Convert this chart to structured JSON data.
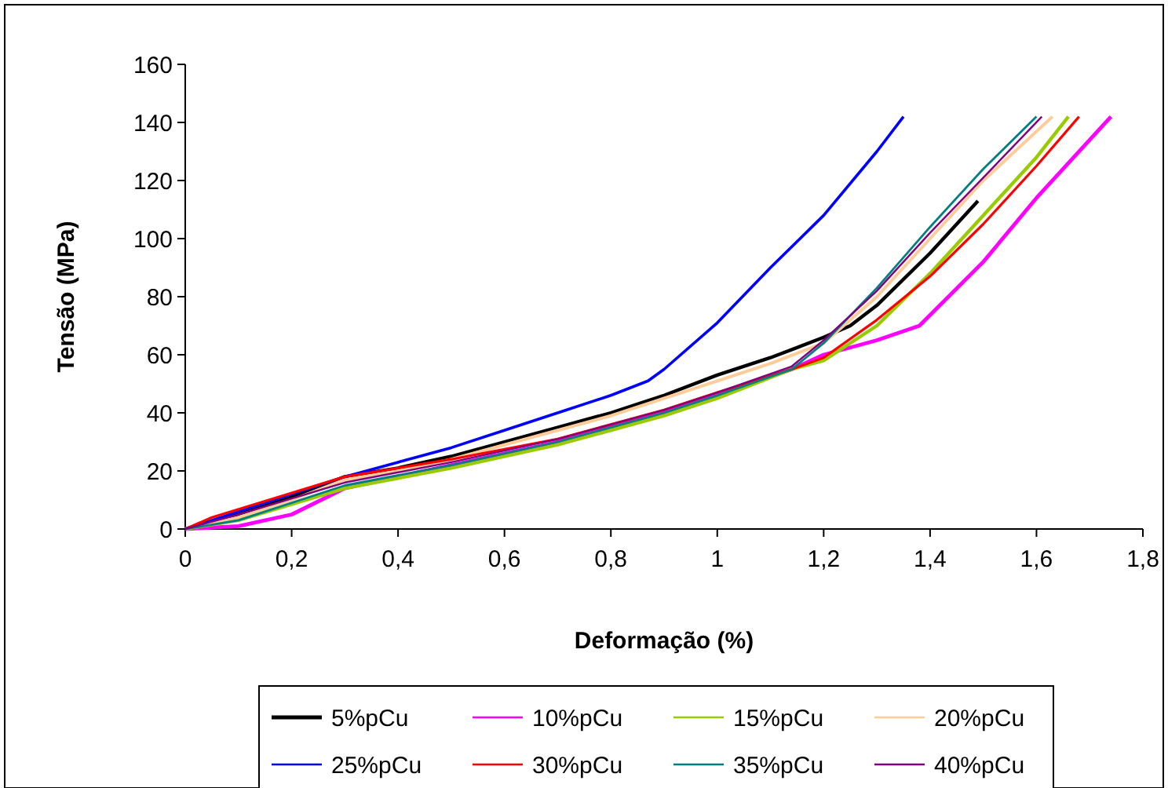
{
  "chart_data": {
    "type": "line",
    "xlabel": "Deformação (%)",
    "ylabel": "Tensão (MPa)",
    "xlim": [
      0,
      1.8
    ],
    "ylim": [
      0,
      160
    ],
    "xticks": [
      {
        "value": 0,
        "label": "0"
      },
      {
        "value": 0.2,
        "label": "0,2"
      },
      {
        "value": 0.4,
        "label": "0,4"
      },
      {
        "value": 0.6,
        "label": "0,6"
      },
      {
        "value": 0.8,
        "label": "0,8"
      },
      {
        "value": 1,
        "label": "1"
      },
      {
        "value": 1.2,
        "label": "1,2"
      },
      {
        "value": 1.4,
        "label": "1,4"
      },
      {
        "value": 1.6,
        "label": "1,6"
      },
      {
        "value": 1.8,
        "label": "1,8"
      }
    ],
    "yticks": [
      0,
      20,
      40,
      60,
      80,
      100,
      120,
      140,
      160
    ],
    "grid": false,
    "legend": "bottom",
    "marker": "none",
    "line_style": "solid",
    "series": [
      {
        "name": "5%pCu",
        "color": "#000000",
        "x": [
          0,
          0.1,
          0.2,
          0.3,
          0.4,
          0.5,
          0.6,
          0.7,
          0.8,
          0.9,
          1.0,
          1.1,
          1.2,
          1.25,
          1.3,
          1.4,
          1.49
        ],
        "values": [
          0,
          5,
          11,
          18,
          21,
          25,
          30,
          35,
          40,
          46,
          53,
          59,
          66,
          70,
          77,
          95,
          113
        ]
      },
      {
        "name": "10%pCu",
        "color": "#ff00ff",
        "x": [
          0,
          0.1,
          0.2,
          0.3,
          0.5,
          0.7,
          0.9,
          1.0,
          1.14,
          1.2,
          1.3,
          1.38,
          1.5,
          1.6,
          1.74
        ],
        "values": [
          0,
          1,
          5,
          14,
          22,
          30,
          40,
          46,
          55,
          60,
          65,
          70,
          92,
          114,
          142
        ]
      },
      {
        "name": "15%pCu",
        "color": "#99cc00",
        "x": [
          0,
          0.1,
          0.3,
          0.5,
          0.7,
          0.9,
          1.0,
          1.14,
          1.2,
          1.3,
          1.4,
          1.5,
          1.6,
          1.66
        ],
        "values": [
          0,
          3,
          14,
          21,
          29,
          39,
          45,
          55,
          58,
          70,
          88,
          108,
          128,
          142
        ]
      },
      {
        "name": "20%pCu",
        "color": "#ffcc99",
        "x": [
          0,
          0.1,
          0.2,
          0.3,
          0.4,
          0.5,
          0.6,
          0.7,
          0.8,
          0.9,
          1.0,
          1.1,
          1.2,
          1.3,
          1.4,
          1.5,
          1.63
        ],
        "values": [
          0,
          4,
          10,
          17,
          20,
          24,
          29,
          34,
          39,
          45,
          51,
          57,
          64,
          80,
          100,
          120,
          142
        ]
      },
      {
        "name": "25%pCu",
        "color": "#0000ff",
        "x": [
          0,
          0.05,
          0.2,
          0.3,
          0.4,
          0.5,
          0.6,
          0.7,
          0.8,
          0.87,
          0.9,
          1.0,
          1.1,
          1.2,
          1.3,
          1.35
        ],
        "values": [
          0,
          3,
          12,
          18,
          23,
          28,
          34,
          40,
          46,
          51,
          55,
          71,
          90,
          108,
          130,
          142
        ]
      },
      {
        "name": "30%pCu",
        "color": "#ff0000",
        "x": [
          0,
          0.05,
          0.3,
          0.5,
          0.7,
          0.9,
          1.0,
          1.14,
          1.2,
          1.3,
          1.4,
          1.5,
          1.6,
          1.68
        ],
        "values": [
          0,
          4,
          18,
          24,
          31,
          41,
          47,
          55,
          59,
          72,
          87,
          105,
          125,
          142
        ]
      },
      {
        "name": "35%pCu",
        "color": "#008080",
        "x": [
          0,
          0.1,
          0.3,
          0.5,
          0.7,
          0.9,
          1.0,
          1.14,
          1.2,
          1.3,
          1.4,
          1.5,
          1.6
        ],
        "values": [
          0,
          3,
          15,
          22,
          30,
          40,
          46,
          55,
          64,
          83,
          104,
          124,
          142
        ]
      },
      {
        "name": "40%pCu",
        "color": "#800080",
        "x": [
          0,
          0.1,
          0.3,
          0.5,
          0.7,
          0.9,
          1.0,
          1.14,
          1.2,
          1.3,
          1.4,
          1.5,
          1.61
        ],
        "values": [
          0,
          5,
          16,
          23,
          31,
          41,
          47,
          56,
          65,
          82,
          102,
          121,
          142
        ]
      }
    ]
  }
}
